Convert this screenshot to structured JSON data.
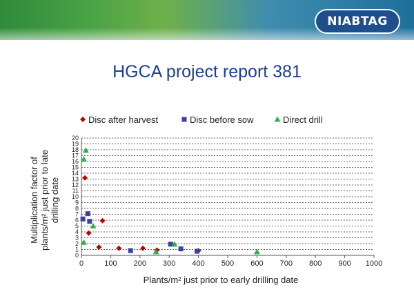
{
  "header": {
    "logo_text": "NIABTAG"
  },
  "slide": {
    "title": "HGCA project report 381"
  },
  "chart_data": {
    "type": "scatter",
    "title": "",
    "xlabel": "Plants/m² just prior to early drilling date",
    "ylabel_lines": [
      "Multiplication factor of",
      "plants/m² just prior to late",
      "drilling date"
    ],
    "xlim": [
      0,
      1000
    ],
    "ylim": [
      0,
      20
    ],
    "xticks": [
      0,
      100,
      200,
      300,
      400,
      500,
      600,
      700,
      800,
      900,
      1000
    ],
    "yticks": [
      0,
      1,
      2,
      3,
      4,
      5,
      6,
      7,
      8,
      9,
      10,
      11,
      12,
      13,
      14,
      15,
      16,
      17,
      18,
      19,
      20
    ],
    "grid": true,
    "legend_position": "top",
    "series": [
      {
        "name": "Disc after harvest",
        "marker": "diamond",
        "color": "#c00000",
        "points": [
          [
            12,
            13.2
          ],
          [
            25,
            3.8
          ],
          [
            60,
            1.4
          ],
          [
            72,
            5.9
          ],
          [
            128,
            1.2
          ],
          [
            210,
            1.2
          ],
          [
            258,
            0.9
          ],
          [
            400,
            0.8
          ]
        ]
      },
      {
        "name": "Disc before sow",
        "marker": "square",
        "color": "#3f3f9f",
        "points": [
          [
            5,
            6.2
          ],
          [
            22,
            7.1
          ],
          [
            28,
            5.8
          ],
          [
            168,
            0.8
          ],
          [
            305,
            1.9
          ],
          [
            340,
            1.1
          ],
          [
            395,
            0.7
          ]
        ]
      },
      {
        "name": "Direct drill",
        "marker": "triangle",
        "color": "#2bb24a",
        "points": [
          [
            8,
            16.4
          ],
          [
            15,
            17.9
          ],
          [
            8,
            2.2
          ],
          [
            40,
            5.0
          ],
          [
            255,
            0.6
          ],
          [
            318,
            1.9
          ],
          [
            600,
            0.6
          ]
        ]
      }
    ]
  }
}
